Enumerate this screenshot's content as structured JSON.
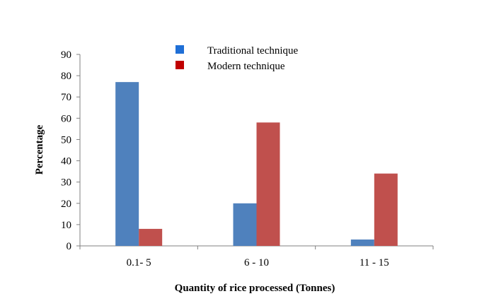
{
  "chart_data": {
    "type": "bar",
    "categories": [
      "0.1- 5",
      "6 - 10",
      "11 - 15"
    ],
    "series": [
      {
        "name": "Traditional technique",
        "values": [
          77,
          20,
          3
        ],
        "color": "#4F81BD",
        "legend_color": "#1F6FD6"
      },
      {
        "name": "Modern technique",
        "values": [
          8,
          58,
          34
        ],
        "color": "#C0504D",
        "legend_color": "#C00000"
      }
    ],
    "xlabel": "Quantity of rice processed (Tonnes)",
    "ylabel": "Percentage",
    "ylim": [
      0,
      90
    ],
    "yticks": [
      "0",
      "10",
      "20",
      "30",
      "40",
      "50",
      "60",
      "70",
      "80",
      "90"
    ],
    "grid": false,
    "legend_position": "top-center"
  }
}
